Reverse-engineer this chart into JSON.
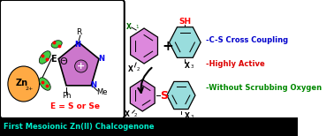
{
  "bg_color": "#ffffff",
  "box_bg": "#000000",
  "box_text": "First Mesoionic Zn(II) Chalcogenone",
  "box_text_color": "#00eecc",
  "bullet1_text": "-C-S Cross Coupling",
  "bullet1_color": "#0000cc",
  "bullet2_text": "-Highly Active",
  "bullet2_color": "#dd0000",
  "bullet3_text": "-Without Scrubbing Oxygen",
  "bullet3_color": "#008800",
  "zn_color": "#ffaa44",
  "lobe_color": "#44cc44",
  "sh_color": "#ff0000",
  "x1_color": "#006600",
  "s_color": "#ff0000",
  "arrow_color": "#000000",
  "benzene_pink": "#dd88dd",
  "benzene_cyan": "#99dddd",
  "n_color": "#0000ee",
  "e_label": "E = S or Se",
  "e_label_color": "#ff0000",
  "plus_color": "#000000",
  "ring_fill": "#cc77cc",
  "ring_inner": "#bb66bb"
}
